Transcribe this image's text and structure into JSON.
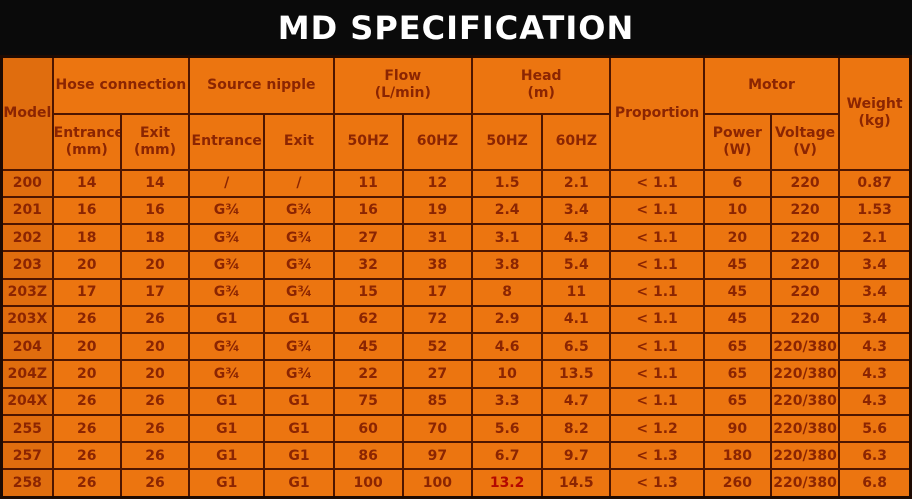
{
  "title": "MD SPECIFICATION",
  "colors": {
    "title_bar_bg": "#0a0a0a",
    "title_text": "#ffffff",
    "cell_bg": "#ec7510",
    "model_col_bg": "#e06d0e",
    "cell_border": "#4d1500",
    "cell_text": "#8b2502",
    "highlight_text": "#b30801"
  },
  "table": {
    "header_groups": {
      "model": "Model",
      "hose_connection": "Hose connection",
      "source_nipple": "Source nipple",
      "flow_line1": "Flow",
      "flow_line2": "(L/min)",
      "head_line1": "Head",
      "head_line2": "(m)",
      "proportion": "Proportion",
      "motor": "Motor",
      "weight_line1": "Weight",
      "weight_line2": "(kg)"
    },
    "subheaders": {
      "hose_entrance_line1": "Entrance",
      "hose_entrance_line2": "(mm)",
      "hose_exit_line1": "Exit",
      "hose_exit_line2": "(mm)",
      "nipple_entrance": "Entrance",
      "nipple_exit": "Exit",
      "flow_50hz": "50HZ",
      "flow_60hz": "60HZ",
      "head_50hz": "50HZ",
      "head_60hz": "60HZ",
      "power_line1": "Power",
      "power_line2": "(W)",
      "voltage_line1": "Voltage",
      "voltage_line2": "(V)"
    },
    "rows": [
      {
        "model": "200",
        "cells": [
          "14",
          "14",
          "/",
          "/",
          "11",
          "12",
          "1.5",
          "2.1",
          "< 1.1",
          "6",
          "220",
          "0.87"
        ]
      },
      {
        "model": "201",
        "cells": [
          "16",
          "16",
          "G¾",
          "G¾",
          "16",
          "19",
          "2.4",
          "3.4",
          "< 1.1",
          "10",
          "220",
          "1.53"
        ]
      },
      {
        "model": "202",
        "cells": [
          "18",
          "18",
          "G¾",
          "G¾",
          "27",
          "31",
          "3.1",
          "4.3",
          "< 1.1",
          "20",
          "220",
          "2.1"
        ]
      },
      {
        "model": "203",
        "cells": [
          "20",
          "20",
          "G¾",
          "G¾",
          "32",
          "38",
          "3.8",
          "5.4",
          "< 1.1",
          "45",
          "220",
          "3.4"
        ]
      },
      {
        "model": "203Z",
        "cells": [
          "17",
          "17",
          "G¾",
          "G¾",
          "15",
          "17",
          "8",
          "11",
          "< 1.1",
          "45",
          "220",
          "3.4"
        ]
      },
      {
        "model": "203X",
        "cells": [
          "26",
          "26",
          "G1",
          "G1",
          "62",
          "72",
          "2.9",
          "4.1",
          "< 1.1",
          "45",
          "220",
          "3.4"
        ]
      },
      {
        "model": "204",
        "cells": [
          "20",
          "20",
          "G¾",
          "G¾",
          "45",
          "52",
          "4.6",
          "6.5",
          "< 1.1",
          "65",
          "220/380",
          "4.3"
        ]
      },
      {
        "model": "204Z",
        "cells": [
          "20",
          "20",
          "G¾",
          "G¾",
          "22",
          "27",
          "10",
          "13.5",
          "< 1.1",
          "65",
          "220/380",
          "4.3"
        ]
      },
      {
        "model": "204X",
        "cells": [
          "26",
          "26",
          "G1",
          "G1",
          "75",
          "85",
          "3.3",
          "4.7",
          "< 1.1",
          "65",
          "220/380",
          "4.3"
        ]
      },
      {
        "model": "255",
        "cells": [
          "26",
          "26",
          "G1",
          "G1",
          "60",
          "70",
          "5.6",
          "8.2",
          "< 1.2",
          "90",
          "220/380",
          "5.6"
        ]
      },
      {
        "model": "257",
        "cells": [
          "26",
          "26",
          "G1",
          "G1",
          "86",
          "97",
          "6.7",
          "9.7",
          "< 1.3",
          "180",
          "220/380",
          "6.3"
        ]
      },
      {
        "model": "258",
        "cells": [
          "26",
          "26",
          "G1",
          "G1",
          "100",
          "100",
          "13.2",
          "14.5",
          "< 1.3",
          "260",
          "220/380",
          "6.8"
        ]
      }
    ],
    "highlight": {
      "row_index": 11,
      "cell_index": 6,
      "color": "#b30801"
    }
  }
}
